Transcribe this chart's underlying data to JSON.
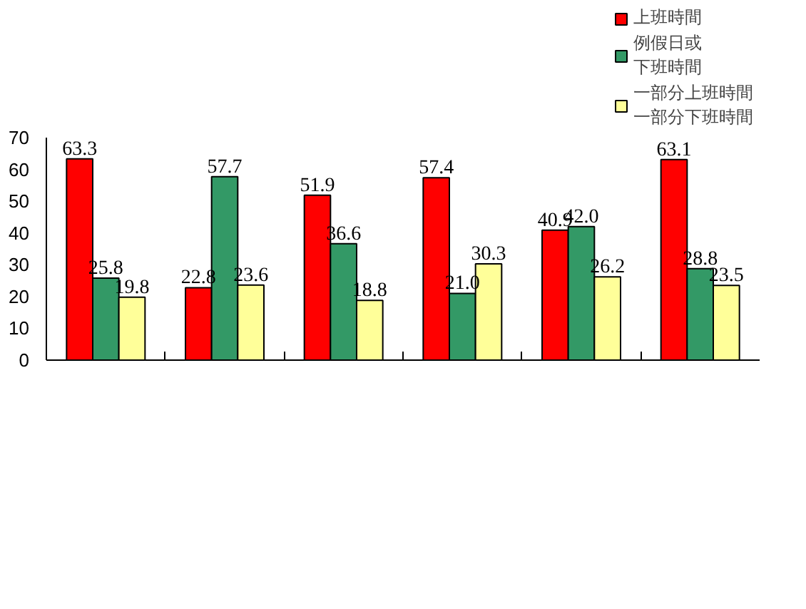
{
  "chart_data": {
    "type": "bar",
    "categories": [
      null,
      null,
      null,
      null,
      null,
      null
    ],
    "series": [
      {
        "name": "上班時間",
        "color": "#ff0000",
        "values": [
          63.3,
          22.8,
          51.9,
          57.4,
          40.9,
          63.1
        ],
        "value_labels": [
          "63.3",
          "22.8",
          "51.9",
          "57.4",
          "40.9",
          "63.1"
        ]
      },
      {
        "name": "例假日或下班時間",
        "color": "#339966",
        "values": [
          25.8,
          57.7,
          36.6,
          21.0,
          42.0,
          28.8
        ],
        "value_labels": [
          "25.8",
          "57.7",
          "36.6",
          "21.0",
          "42.0",
          "28.8"
        ]
      },
      {
        "name": "一部分上班時間一部分下班時間",
        "color": "#ffff99",
        "values": [
          19.8,
          23.6,
          18.8,
          30.3,
          26.2,
          23.5
        ],
        "value_labels": [
          "19.8",
          "23.6",
          "18.8",
          "30.3",
          "26.2",
          "23.5"
        ]
      }
    ],
    "ylim": [
      0,
      70
    ],
    "yticks": [
      0,
      10,
      20,
      30,
      40,
      50,
      60,
      70
    ],
    "legend": "top right",
    "grid": false
  }
}
